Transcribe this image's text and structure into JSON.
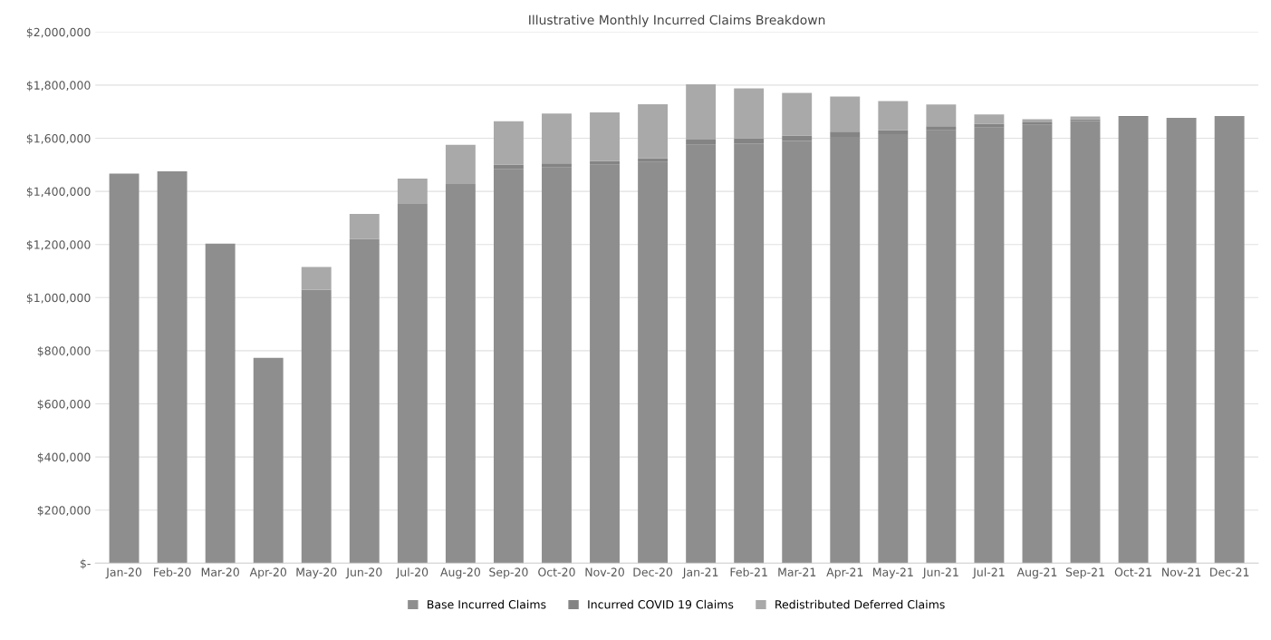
{
  "chart_data": {
    "type": "bar",
    "title": "Illustrative Monthly Incurred Claims Breakdown",
    "stacked": true,
    "categories": [
      "Jan-20",
      "Feb-20",
      "Mar-20",
      "Apr-20",
      "May-20",
      "Jun-20",
      "Jul-20",
      "Aug-20",
      "Sep-20",
      "Oct-20",
      "Nov-20",
      "Dec-20",
      "Jan-21",
      "Feb-21",
      "Mar-21",
      "Apr-21",
      "May-21",
      "Jun-21",
      "Jul-21",
      "Aug-21",
      "Sep-21",
      "Oct-21",
      "Nov-21",
      "Dec-21"
    ],
    "series": [
      {
        "name": "Base Incurred Claims",
        "color": "#8e8e8e",
        "values": [
          1467000,
          1475000,
          1203000,
          773000,
          1030000,
          1220000,
          1355000,
          1430000,
          1485000,
          1490000,
          1500000,
          1510000,
          1575000,
          1580000,
          1590000,
          1605000,
          1615000,
          1630000,
          1640000,
          1650000,
          1665000,
          1680000,
          1677000,
          1684000
        ]
      },
      {
        "name": "Incurred COVID 19 Claims",
        "color": "#848484",
        "values": [
          0,
          0,
          0,
          0,
          0,
          0,
          0,
          0,
          15000,
          15000,
          15000,
          15000,
          20000,
          20000,
          20000,
          20000,
          15000,
          15000,
          15000,
          10000,
          7000,
          4000,
          0,
          0
        ]
      },
      {
        "name": "Redistributed Deferred Claims",
        "color": "#a9a9a9",
        "values": [
          0,
          0,
          0,
          0,
          85000,
          95000,
          93000,
          145000,
          164000,
          188000,
          182000,
          203000,
          208000,
          188000,
          161000,
          132000,
          110000,
          82000,
          35000,
          12000,
          10000,
          0,
          0,
          0
        ]
      }
    ],
    "ylim": [
      0,
      2000000
    ],
    "yticks": [
      {
        "value": 0,
        "label": "$-"
      },
      {
        "value": 200000,
        "label": "$200,000"
      },
      {
        "value": 400000,
        "label": "$400,000"
      },
      {
        "value": 600000,
        "label": "$600,000"
      },
      {
        "value": 800000,
        "label": "$800,000"
      },
      {
        "value": 1000000,
        "label": "$1,000,000"
      },
      {
        "value": 1200000,
        "label": "$1,200,000"
      },
      {
        "value": 1400000,
        "label": "$1,400,000"
      },
      {
        "value": 1600000,
        "label": "$1,600,000"
      },
      {
        "value": 1800000,
        "label": "$1,800,000"
      },
      {
        "value": 2000000,
        "label": "$2,000,000"
      }
    ],
    "grid": "y",
    "legend": "bottom"
  }
}
